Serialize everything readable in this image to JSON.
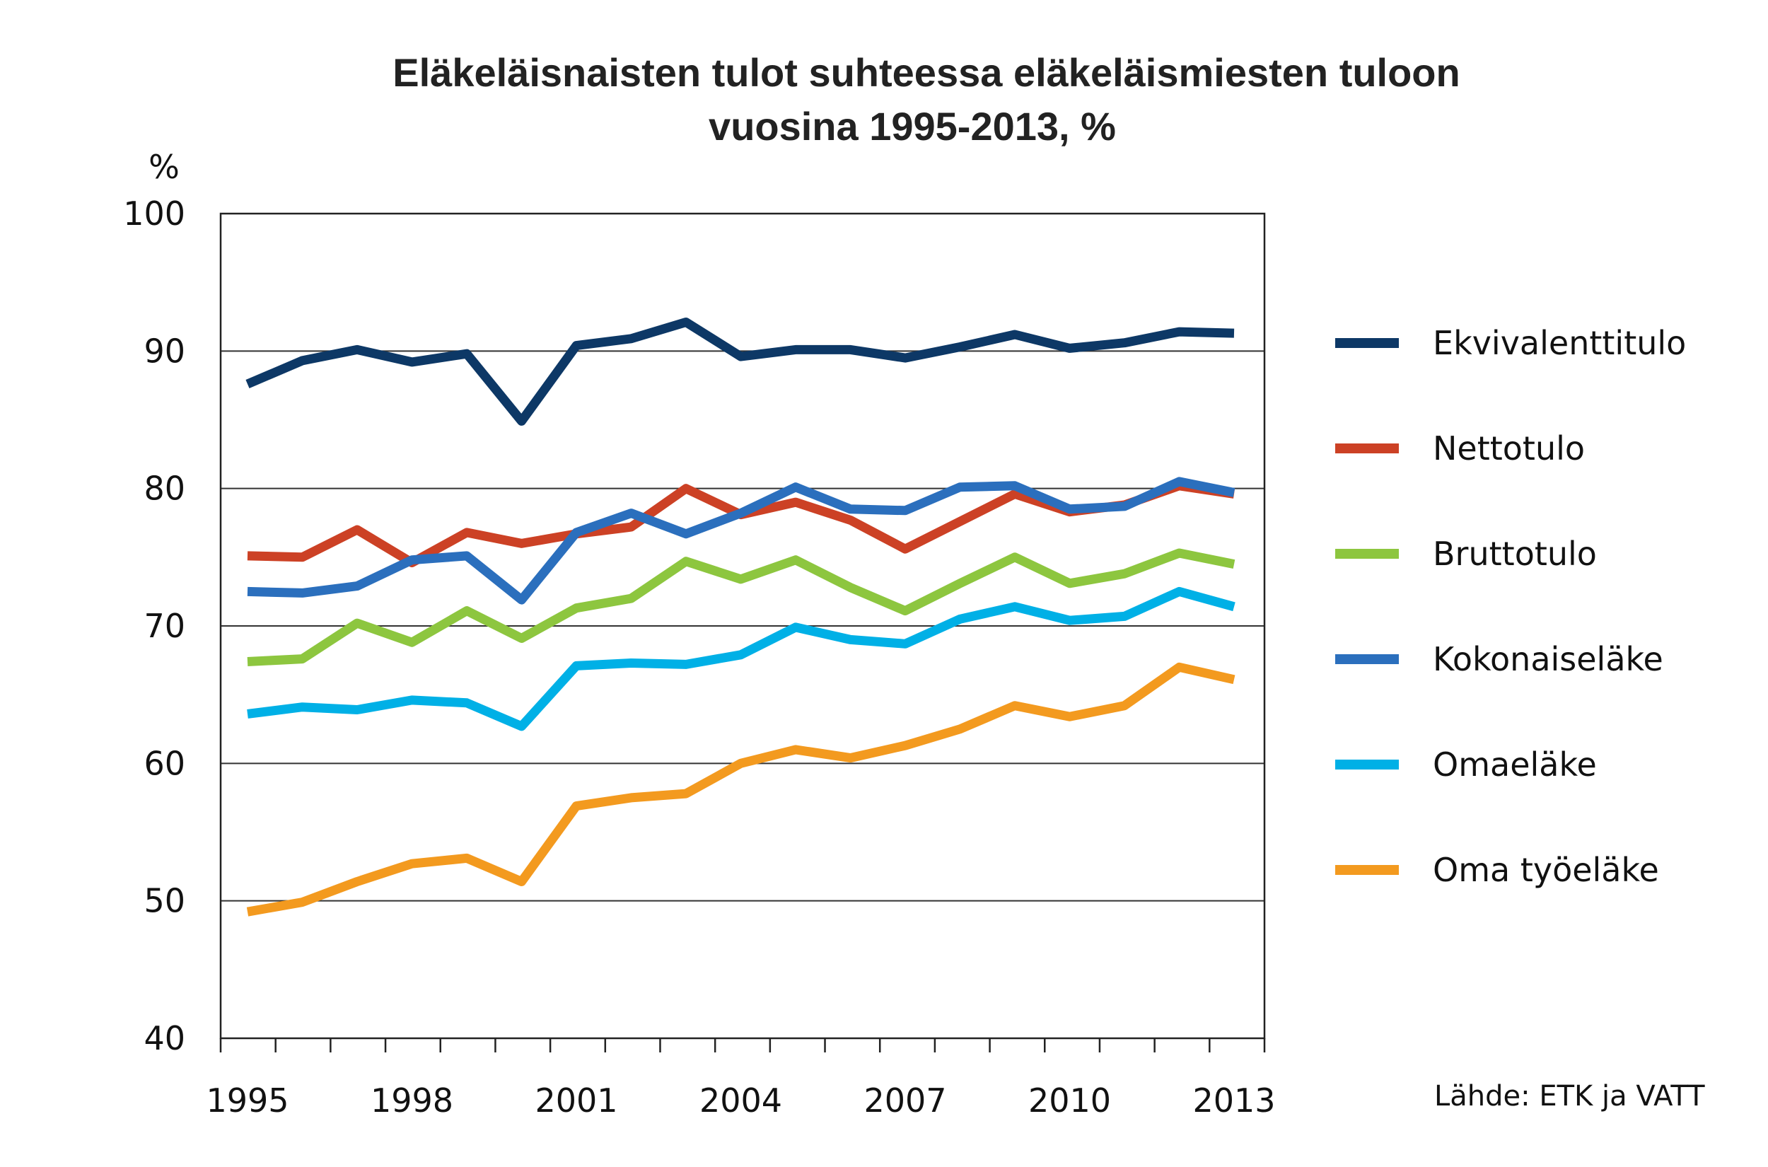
{
  "chart_data": {
    "type": "line",
    "title_line1": "Eläkeläisnaisten tulot suhteessa eläkeläismiesten tuloon",
    "title_line2": "vuosina 1995-2013, %",
    "ylabel": "%",
    "source": "Lähde: ETK ja VATT",
    "ylim": [
      40,
      100
    ],
    "yticks": [
      40,
      50,
      60,
      70,
      80,
      90,
      100
    ],
    "x": [
      1995,
      1996,
      1997,
      1998,
      1999,
      2000,
      2001,
      2002,
      2003,
      2004,
      2005,
      2006,
      2007,
      2008,
      2009,
      2010,
      2011,
      2012,
      2013
    ],
    "xticks": [
      1995,
      1998,
      2001,
      2004,
      2007,
      2010,
      2013
    ],
    "grid": "horizontal",
    "legend_position": "right",
    "series": [
      {
        "name": "Ekvivalenttitulo",
        "color": "#0d3866",
        "values": [
          87.6,
          89.3,
          90.1,
          89.2,
          89.8,
          84.9,
          90.4,
          90.9,
          92.1,
          89.6,
          90.1,
          90.1,
          89.5,
          90.3,
          91.2,
          90.2,
          90.6,
          91.4,
          91.3
        ]
      },
      {
        "name": "Nettotulo",
        "color": "#cc4125",
        "values": [
          75.1,
          75.0,
          77.0,
          74.6,
          76.8,
          76.0,
          76.7,
          77.2,
          80.0,
          78.1,
          79.0,
          77.7,
          75.6,
          77.6,
          79.6,
          78.3,
          78.8,
          80.2,
          79.6
        ]
      },
      {
        "name": "Bruttotulo",
        "color": "#8dc63f",
        "values": [
          67.4,
          67.6,
          70.2,
          68.8,
          71.1,
          69.1,
          71.3,
          72.0,
          74.7,
          73.4,
          74.8,
          72.8,
          71.1,
          73.1,
          75.0,
          73.1,
          73.8,
          75.3,
          74.5
        ]
      },
      {
        "name": "Kokonaiseläke",
        "color": "#2b6fbd",
        "values": [
          72.5,
          72.4,
          72.9,
          74.8,
          75.1,
          71.9,
          76.8,
          78.2,
          76.7,
          78.2,
          80.1,
          78.5,
          78.4,
          80.1,
          80.2,
          78.5,
          78.7,
          80.5,
          79.7
        ]
      },
      {
        "name": "Omaeläke",
        "color": "#00b0e6",
        "values": [
          63.6,
          64.1,
          63.9,
          64.6,
          64.4,
          62.7,
          67.1,
          67.3,
          67.2,
          67.9,
          69.9,
          69.0,
          68.7,
          70.5,
          71.4,
          70.4,
          70.7,
          72.5,
          71.4
        ]
      },
      {
        "name": "Oma työeläke",
        "color": "#f39a1f",
        "values": [
          49.2,
          49.9,
          51.4,
          52.7,
          53.1,
          51.4,
          56.9,
          57.5,
          57.8,
          60.0,
          61.0,
          60.4,
          61.3,
          62.5,
          64.2,
          63.4,
          64.2,
          67.0,
          66.1
        ]
      }
    ]
  }
}
